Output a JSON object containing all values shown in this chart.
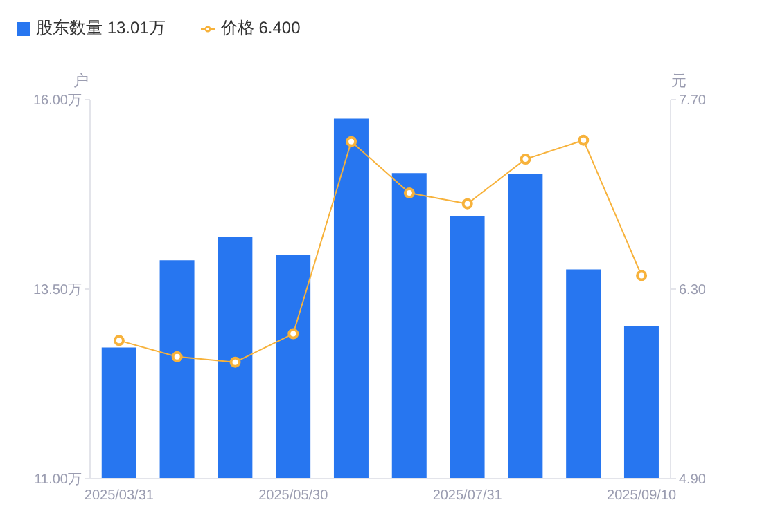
{
  "chart_data": {
    "type": "bar",
    "ylabel": "户",
    "y2label": "元",
    "categories": [
      "2025/03/31",
      null,
      null,
      "2025/05/30",
      null,
      null,
      "2025/07/31",
      null,
      null,
      "2025/09/10"
    ],
    "series": [
      {
        "name": "股东数量 13.01万",
        "color": "#2776f0",
        "values": [
          12.73,
          13.88,
          14.19,
          13.95,
          15.75,
          15.03,
          14.46,
          15.02,
          13.76,
          13.01
        ]
      },
      {
        "name": "价格 6.400",
        "type": "line",
        "axis": "y2",
        "color": "#f7b23b",
        "marker": "circle",
        "values": [
          5.92,
          5.8,
          5.76,
          5.97,
          7.39,
          7.01,
          6.93,
          7.26,
          7.4,
          6.4
        ]
      }
    ],
    "ylim": [
      11,
      16
    ],
    "yticks": [
      {
        "value": 11,
        "label": "11.00万"
      },
      {
        "value": 13.5,
        "label": "13.50万"
      },
      {
        "value": 16,
        "label": "16.00万"
      }
    ],
    "y2lim": [
      4.9,
      7.7
    ],
    "y2ticks": [
      {
        "value": 4.9,
        "label": "4.90"
      },
      {
        "value": 6.3,
        "label": "6.30"
      },
      {
        "value": 7.7,
        "label": "7.70"
      }
    ],
    "legend": "top left",
    "grid": false
  }
}
